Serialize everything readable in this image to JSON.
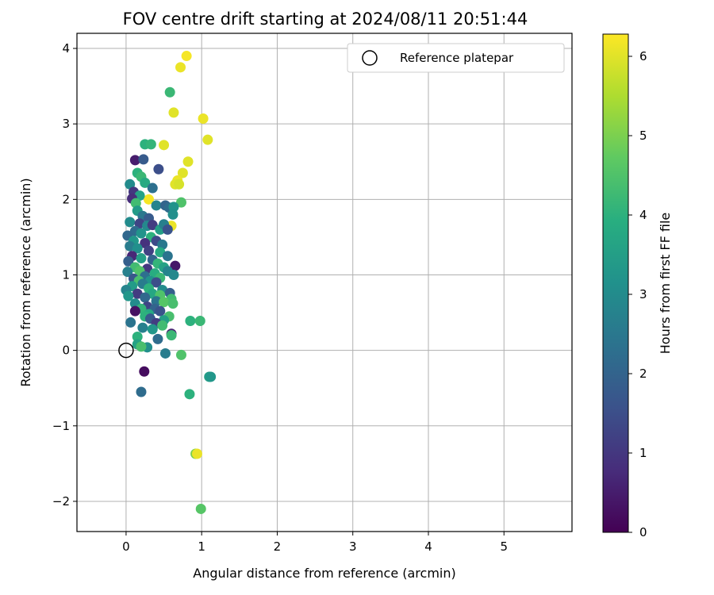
{
  "chart_data": {
    "type": "scatter",
    "title": "FOV centre drift starting at 2024/08/11 20:51:44",
    "xlabel": "Angular distance from reference (arcmin)",
    "ylabel": "Rotation from reference (arcmin)",
    "xlim": [
      -0.65,
      5.9
    ],
    "ylim": [
      -2.4,
      4.2
    ],
    "xticks": [
      0,
      1,
      2,
      3,
      4,
      5
    ],
    "yticks": [
      -2,
      -1,
      0,
      1,
      2,
      3,
      4
    ],
    "grid": true,
    "legend": {
      "position": "top-right",
      "entries": [
        "Reference platepar"
      ]
    },
    "colorbar": {
      "label": "Hours from first FF file",
      "range": [
        0,
        6.28
      ],
      "ticks": [
        0,
        1,
        2,
        3,
        4,
        5,
        6
      ],
      "colormap": "viridis"
    },
    "reference_point": {
      "x": 0,
      "y": 0
    },
    "points": [
      {
        "x": 0.72,
        "y": 3.75,
        "h": 6.1
      },
      {
        "x": 0.8,
        "y": 3.9,
        "h": 6.2
      },
      {
        "x": 0.58,
        "y": 3.42,
        "h": 4.2
      },
      {
        "x": 0.63,
        "y": 3.15,
        "h": 6.0
      },
      {
        "x": 1.02,
        "y": 3.07,
        "h": 6.1
      },
      {
        "x": 1.08,
        "y": 2.79,
        "h": 6.0
      },
      {
        "x": 0.5,
        "y": 2.72,
        "h": 6.0
      },
      {
        "x": 0.25,
        "y": 2.73,
        "h": 4.0
      },
      {
        "x": 0.33,
        "y": 2.73,
        "h": 4.1
      },
      {
        "x": 0.82,
        "y": 2.5,
        "h": 6.0
      },
      {
        "x": 0.75,
        "y": 2.35,
        "h": 6.0
      },
      {
        "x": 0.68,
        "y": 2.25,
        "h": 6.1
      },
      {
        "x": 0.65,
        "y": 2.2,
        "h": 6.0
      },
      {
        "x": 0.7,
        "y": 2.2,
        "h": 5.9
      },
      {
        "x": 0.73,
        "y": 1.96,
        "h": 4.5
      },
      {
        "x": 0.6,
        "y": 1.65,
        "h": 6.1
      },
      {
        "x": 0.3,
        "y": 2.0,
        "h": 6.2
      },
      {
        "x": 0.12,
        "y": 2.52,
        "h": 0.5
      },
      {
        "x": 0.23,
        "y": 2.53,
        "h": 1.8
      },
      {
        "x": 0.43,
        "y": 2.4,
        "h": 1.5
      },
      {
        "x": 0.15,
        "y": 2.35,
        "h": 4.0
      },
      {
        "x": 0.2,
        "y": 2.3,
        "h": 4.2
      },
      {
        "x": 0.05,
        "y": 2.2,
        "h": 3.0
      },
      {
        "x": 0.25,
        "y": 2.22,
        "h": 3.8
      },
      {
        "x": 0.35,
        "y": 2.15,
        "h": 2.3
      },
      {
        "x": 0.1,
        "y": 2.1,
        "h": 1.0
      },
      {
        "x": 0.18,
        "y": 2.05,
        "h": 3.6
      },
      {
        "x": 0.08,
        "y": 2.01,
        "h": 0.8
      },
      {
        "x": 0.13,
        "y": 1.95,
        "h": 4.3
      },
      {
        "x": 0.4,
        "y": 1.92,
        "h": 2.8
      },
      {
        "x": 0.52,
        "y": 1.92,
        "h": 2.0
      },
      {
        "x": 0.57,
        "y": 1.89,
        "h": 2.2
      },
      {
        "x": 0.63,
        "y": 1.9,
        "h": 3.2
      },
      {
        "x": 0.62,
        "y": 1.8,
        "h": 3.1
      },
      {
        "x": 0.15,
        "y": 1.85,
        "h": 3.4
      },
      {
        "x": 0.22,
        "y": 1.78,
        "h": 2.5
      },
      {
        "x": 0.3,
        "y": 1.75,
        "h": 1.8
      },
      {
        "x": 0.05,
        "y": 1.7,
        "h": 3.0
      },
      {
        "x": 0.18,
        "y": 1.68,
        "h": 1.3
      },
      {
        "x": 0.28,
        "y": 1.65,
        "h": 2.9
      },
      {
        "x": 0.35,
        "y": 1.66,
        "h": 1.1
      },
      {
        "x": 0.45,
        "y": 1.6,
        "h": 3.5
      },
      {
        "x": 0.5,
        "y": 1.67,
        "h": 2.7
      },
      {
        "x": 0.55,
        "y": 1.6,
        "h": 1.6
      },
      {
        "x": 0.12,
        "y": 1.58,
        "h": 2.2
      },
      {
        "x": 0.02,
        "y": 1.52,
        "h": 2.1
      },
      {
        "x": 0.2,
        "y": 1.55,
        "h": 3.2
      },
      {
        "x": 0.33,
        "y": 1.5,
        "h": 4.0
      },
      {
        "x": 0.4,
        "y": 1.45,
        "h": 1.4
      },
      {
        "x": 0.1,
        "y": 1.45,
        "h": 3.3
      },
      {
        "x": 0.25,
        "y": 1.42,
        "h": 0.9
      },
      {
        "x": 0.48,
        "y": 1.4,
        "h": 2.5
      },
      {
        "x": 0.05,
        "y": 1.38,
        "h": 2.6
      },
      {
        "x": 0.15,
        "y": 1.35,
        "h": 3.1
      },
      {
        "x": 0.3,
        "y": 1.32,
        "h": 1.2
      },
      {
        "x": 0.45,
        "y": 1.3,
        "h": 3.8
      },
      {
        "x": 0.55,
        "y": 1.25,
        "h": 2.4
      },
      {
        "x": 0.08,
        "y": 1.25,
        "h": 0.7
      },
      {
        "x": 0.2,
        "y": 1.22,
        "h": 3.5
      },
      {
        "x": 0.35,
        "y": 1.2,
        "h": 2.0
      },
      {
        "x": 0.03,
        "y": 1.18,
        "h": 1.9
      },
      {
        "x": 0.42,
        "y": 1.15,
        "h": 4.1
      },
      {
        "x": 0.65,
        "y": 1.12,
        "h": 0.4
      },
      {
        "x": 0.5,
        "y": 1.1,
        "h": 3.6
      },
      {
        "x": 0.12,
        "y": 1.1,
        "h": 4.3
      },
      {
        "x": 0.28,
        "y": 1.08,
        "h": 1.0
      },
      {
        "x": 0.18,
        "y": 1.05,
        "h": 4.5
      },
      {
        "x": 0.02,
        "y": 1.04,
        "h": 2.7
      },
      {
        "x": 0.38,
        "y": 1.02,
        "h": 3.9
      },
      {
        "x": 0.55,
        "y": 1.05,
        "h": 2.8
      },
      {
        "x": 0.63,
        "y": 1.0,
        "h": 2.9
      },
      {
        "x": 0.25,
        "y": 0.98,
        "h": 2.3
      },
      {
        "x": 0.45,
        "y": 0.96,
        "h": 4.2
      },
      {
        "x": 0.1,
        "y": 0.95,
        "h": 1.7
      },
      {
        "x": 0.32,
        "y": 0.92,
        "h": 3.2
      },
      {
        "x": 0.17,
        "y": 0.92,
        "h": 4.4
      },
      {
        "x": 0.4,
        "y": 0.9,
        "h": 1.5
      },
      {
        "x": 0.22,
        "y": 0.88,
        "h": 2.6
      },
      {
        "x": 0.08,
        "y": 0.85,
        "h": 3.4
      },
      {
        "x": 0.3,
        "y": 0.82,
        "h": 4.0
      },
      {
        "x": 0.0,
        "y": 0.8,
        "h": 2.8
      },
      {
        "x": 0.48,
        "y": 0.8,
        "h": 3.0
      },
      {
        "x": 0.58,
        "y": 0.76,
        "h": 1.9
      },
      {
        "x": 0.15,
        "y": 0.75,
        "h": 1.1
      },
      {
        "x": 0.35,
        "y": 0.75,
        "h": 3.7
      },
      {
        "x": 0.45,
        "y": 0.73,
        "h": 4.5
      },
      {
        "x": 0.03,
        "y": 0.72,
        "h": 3.3
      },
      {
        "x": 0.25,
        "y": 0.7,
        "h": 2.1
      },
      {
        "x": 0.6,
        "y": 0.68,
        "h": 4.3
      },
      {
        "x": 0.4,
        "y": 0.65,
        "h": 2.4
      },
      {
        "x": 0.12,
        "y": 0.62,
        "h": 3.0
      },
      {
        "x": 0.5,
        "y": 0.64,
        "h": 4.6
      },
      {
        "x": 0.62,
        "y": 0.62,
        "h": 4.4
      },
      {
        "x": 0.28,
        "y": 0.58,
        "h": 1.3
      },
      {
        "x": 0.38,
        "y": 0.55,
        "h": 2.0
      },
      {
        "x": 0.2,
        "y": 0.55,
        "h": 4.1
      },
      {
        "x": 0.45,
        "y": 0.52,
        "h": 1.6
      },
      {
        "x": 0.12,
        "y": 0.52,
        "h": 0.3
      },
      {
        "x": 0.3,
        "y": 0.48,
        "h": 3.8
      },
      {
        "x": 0.25,
        "y": 0.45,
        "h": 4.0
      },
      {
        "x": 0.57,
        "y": 0.45,
        "h": 4.4
      },
      {
        "x": 0.5,
        "y": 0.4,
        "h": 3.5
      },
      {
        "x": 0.85,
        "y": 0.39,
        "h": 4.0
      },
      {
        "x": 0.98,
        "y": 0.39,
        "h": 4.2
      },
      {
        "x": 0.32,
        "y": 0.42,
        "h": 1.8
      },
      {
        "x": 0.06,
        "y": 0.37,
        "h": 2.4
      },
      {
        "x": 0.4,
        "y": 0.36,
        "h": 1.1
      },
      {
        "x": 0.48,
        "y": 0.33,
        "h": 4.3
      },
      {
        "x": 0.22,
        "y": 0.3,
        "h": 2.7
      },
      {
        "x": 0.35,
        "y": 0.28,
        "h": 3.3
      },
      {
        "x": 0.6,
        "y": 0.22,
        "h": 0.6
      },
      {
        "x": 0.6,
        "y": 0.2,
        "h": 4.2
      },
      {
        "x": 0.15,
        "y": 0.18,
        "h": 4.0
      },
      {
        "x": 0.42,
        "y": 0.15,
        "h": 2.2
      },
      {
        "x": 0.15,
        "y": 0.08,
        "h": 3.6
      },
      {
        "x": 0.28,
        "y": 0.04,
        "h": 3.1
      },
      {
        "x": 0.2,
        "y": 0.05,
        "h": 4.4
      },
      {
        "x": 0.52,
        "y": -0.04,
        "h": 2.6
      },
      {
        "x": 0.73,
        "y": -0.06,
        "h": 4.5
      },
      {
        "x": 0.24,
        "y": -0.28,
        "h": 0.2
      },
      {
        "x": 1.1,
        "y": -0.35,
        "h": 3.5
      },
      {
        "x": 1.12,
        "y": -0.35,
        "h": 3.3
      },
      {
        "x": 0.2,
        "y": -0.55,
        "h": 2.2
      },
      {
        "x": 0.84,
        "y": -0.58,
        "h": 4.0
      },
      {
        "x": 0.92,
        "y": -1.37,
        "h": 5.0
      },
      {
        "x": 0.94,
        "y": -1.37,
        "h": 6.1
      },
      {
        "x": 0.99,
        "y": -2.1,
        "h": 4.6
      }
    ]
  }
}
